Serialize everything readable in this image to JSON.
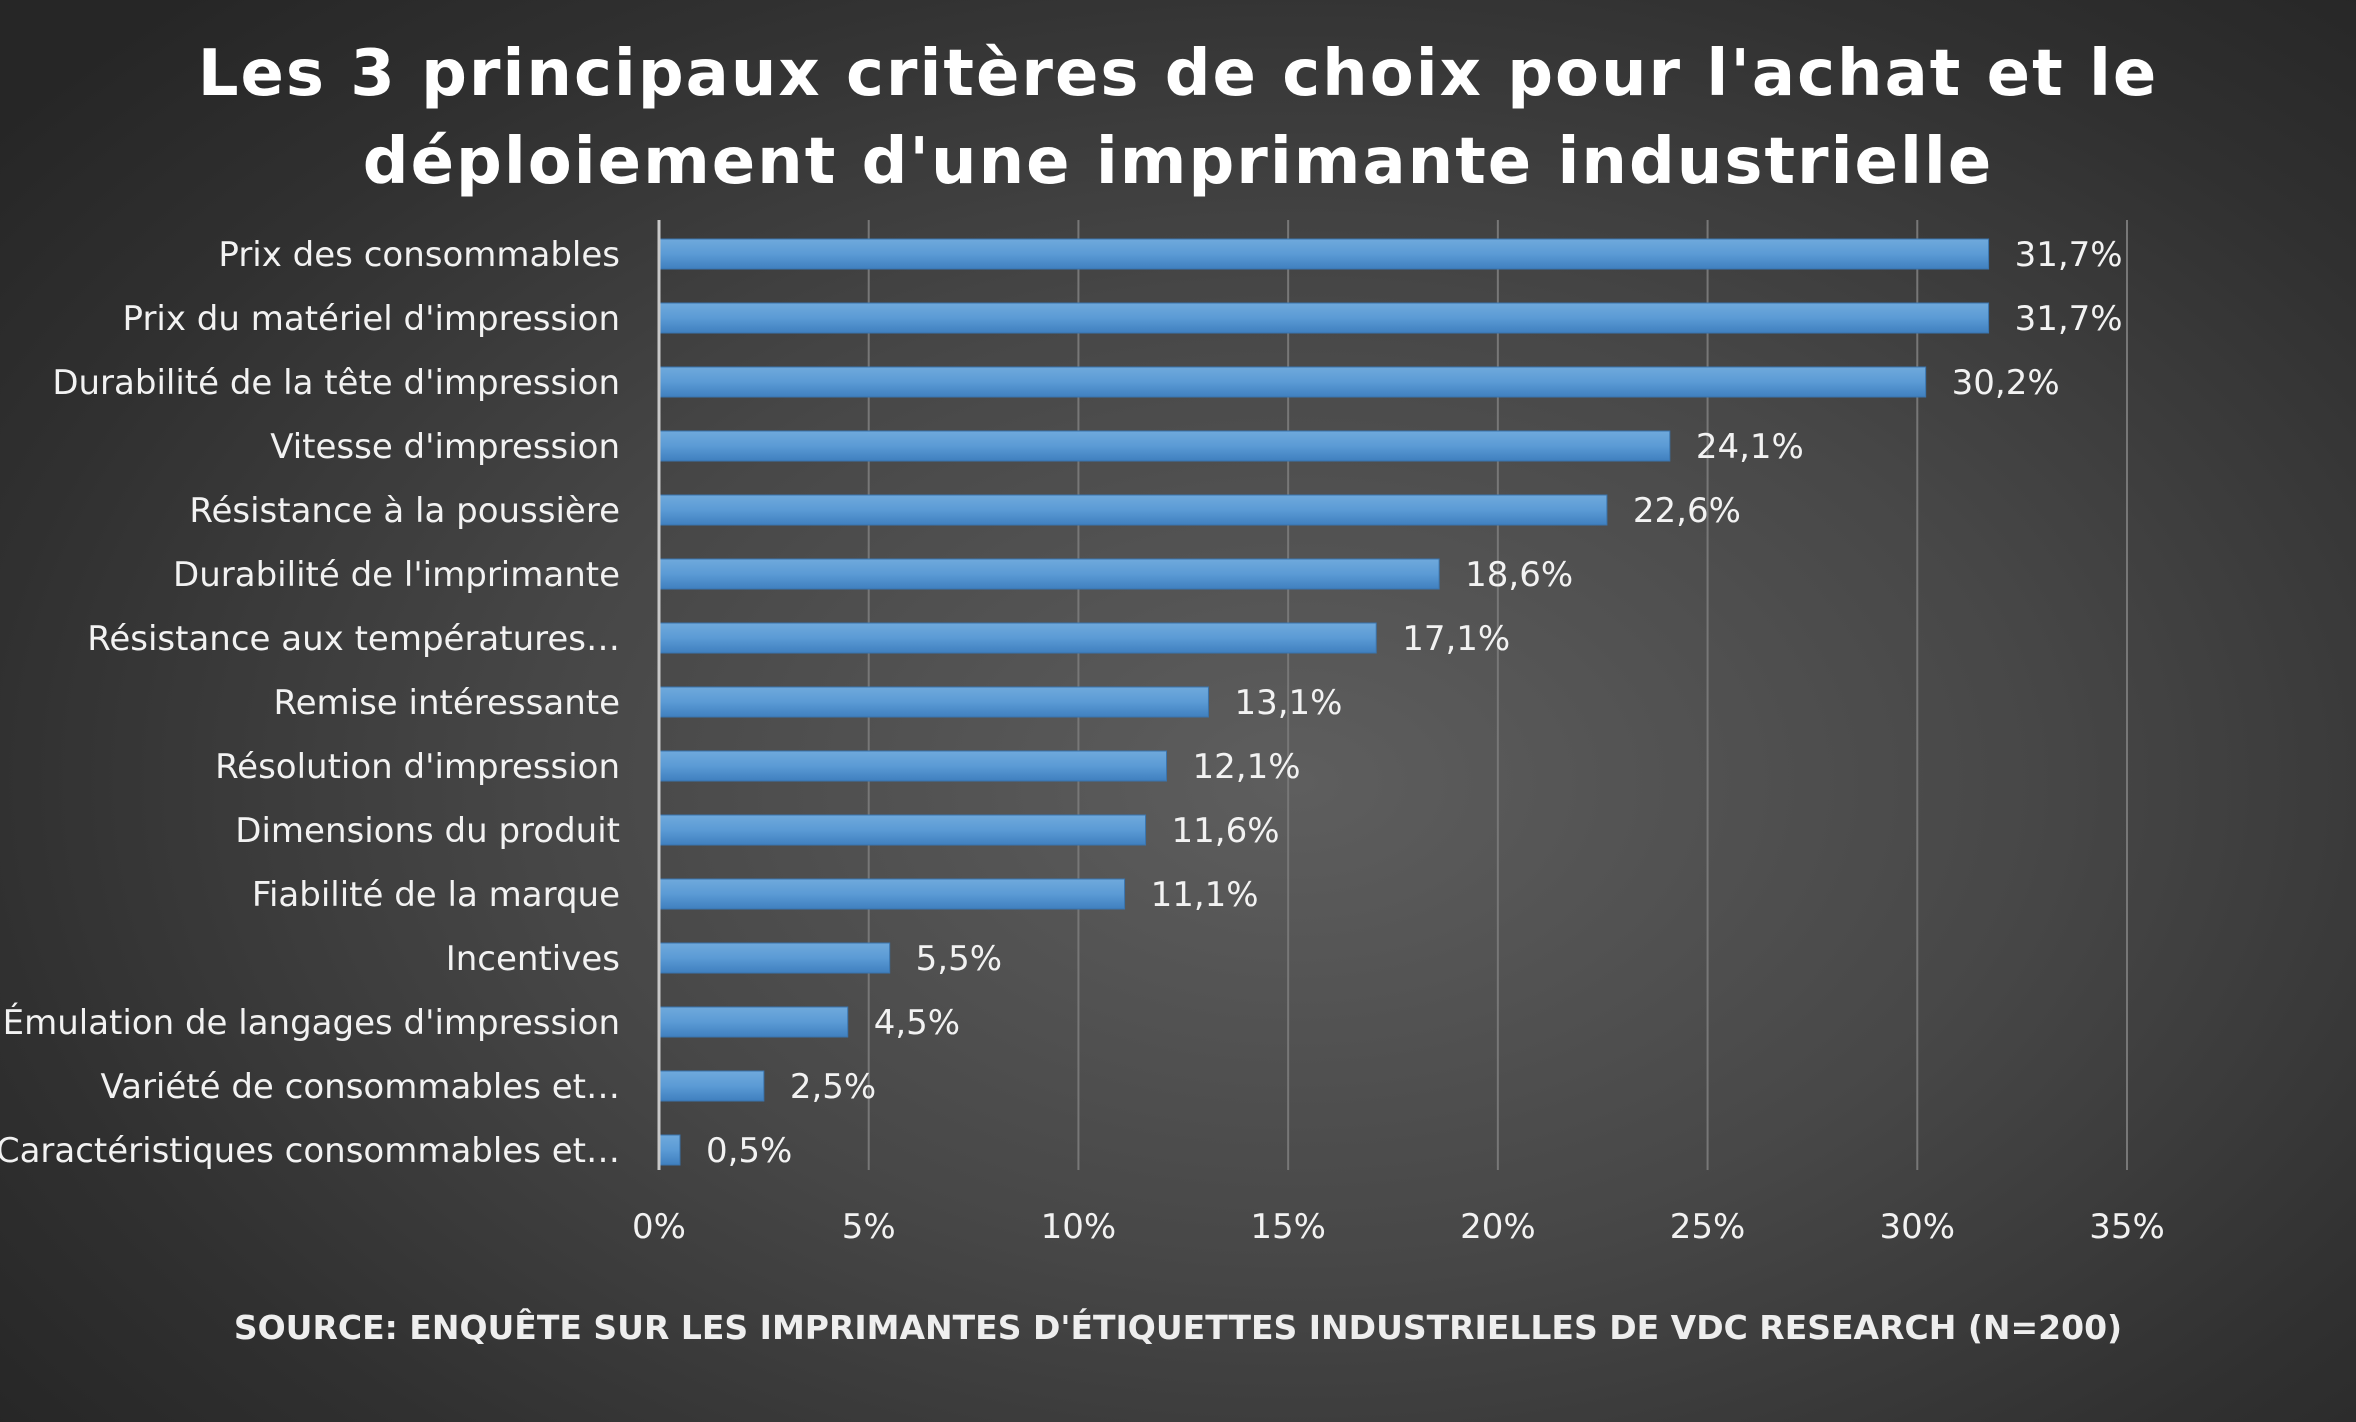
{
  "chart_data": {
    "type": "bar",
    "orientation": "horizontal",
    "title_lines": [
      "Les 3 principaux critères de choix pour l'achat et le",
      "déploiement d'une imprimante industrielle"
    ],
    "categories": [
      "Prix des consommables",
      "Prix du matériel d'impression",
      "Durabilité de la tête d'impression",
      "Vitesse d'impression",
      "Résistance à la poussière",
      "Durabilité de l'imprimante",
      "Résistance aux températures…",
      "Remise intéressante",
      "Résolution d'impression",
      "Dimensions du produit",
      "Fiabilité de la marque",
      "Incentives",
      "Émulation de langages d'impression",
      "Variété de consommables et…",
      "Caractéristiques consommables et…"
    ],
    "values": [
      31.7,
      31.7,
      30.2,
      24.1,
      22.6,
      18.6,
      17.1,
      13.1,
      12.1,
      11.6,
      11.1,
      5.5,
      4.5,
      2.5,
      0.5
    ],
    "value_labels": [
      "31,7%",
      "31,7%",
      "30,2%",
      "24,1%",
      "22,6%",
      "18,6%",
      "17,1%",
      "13,1%",
      "12,1%",
      "11,6%",
      "11,1%",
      "5,5%",
      "4,5%",
      "2,5%",
      "0,5%"
    ],
    "x_ticks": [
      0,
      5,
      10,
      15,
      20,
      25,
      30,
      35
    ],
    "x_tick_labels": [
      "0%",
      "5%",
      "10%",
      "15%",
      "20%",
      "25%",
      "30%",
      "35%"
    ],
    "xlim": [
      0,
      35
    ],
    "grid": true,
    "bar_color": "#5b9bd5",
    "source": "SOURCE: ENQUÊTE SUR LES IMPRIMANTES D'ÉTIQUETTES INDUSTRIELLES DE VDC RESEARCH (N=200)"
  }
}
